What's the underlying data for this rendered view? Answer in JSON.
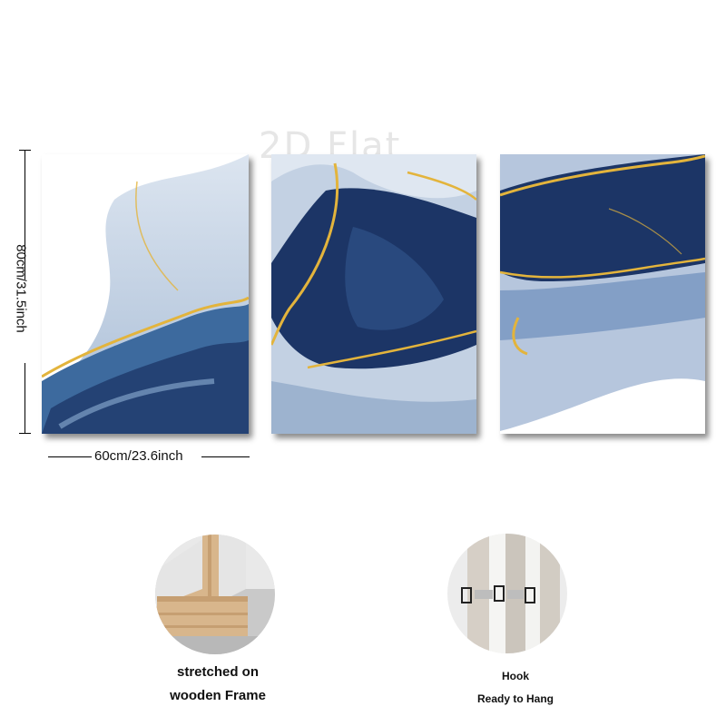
{
  "watermark": "2D Flat",
  "dimensions": {
    "height_label": "80cm/31.5inch",
    "width_label": "60cm/23.6inch"
  },
  "panels": [
    {
      "name": "left-canvas-panel"
    },
    {
      "name": "middle-canvas-panel"
    },
    {
      "name": "right-canvas-panel"
    }
  ],
  "features": {
    "frame": {
      "line1": "stretched on",
      "line2": "wooden Frame"
    },
    "hook": {
      "line1": "Hook",
      "line2": "Ready to Hang"
    }
  },
  "colors": {
    "navy": "#1c3566",
    "blue": "#3d6a9e",
    "pale_blue": "#c3d1e3",
    "gold": "#e3b43c",
    "wood": "#d8b68c"
  }
}
